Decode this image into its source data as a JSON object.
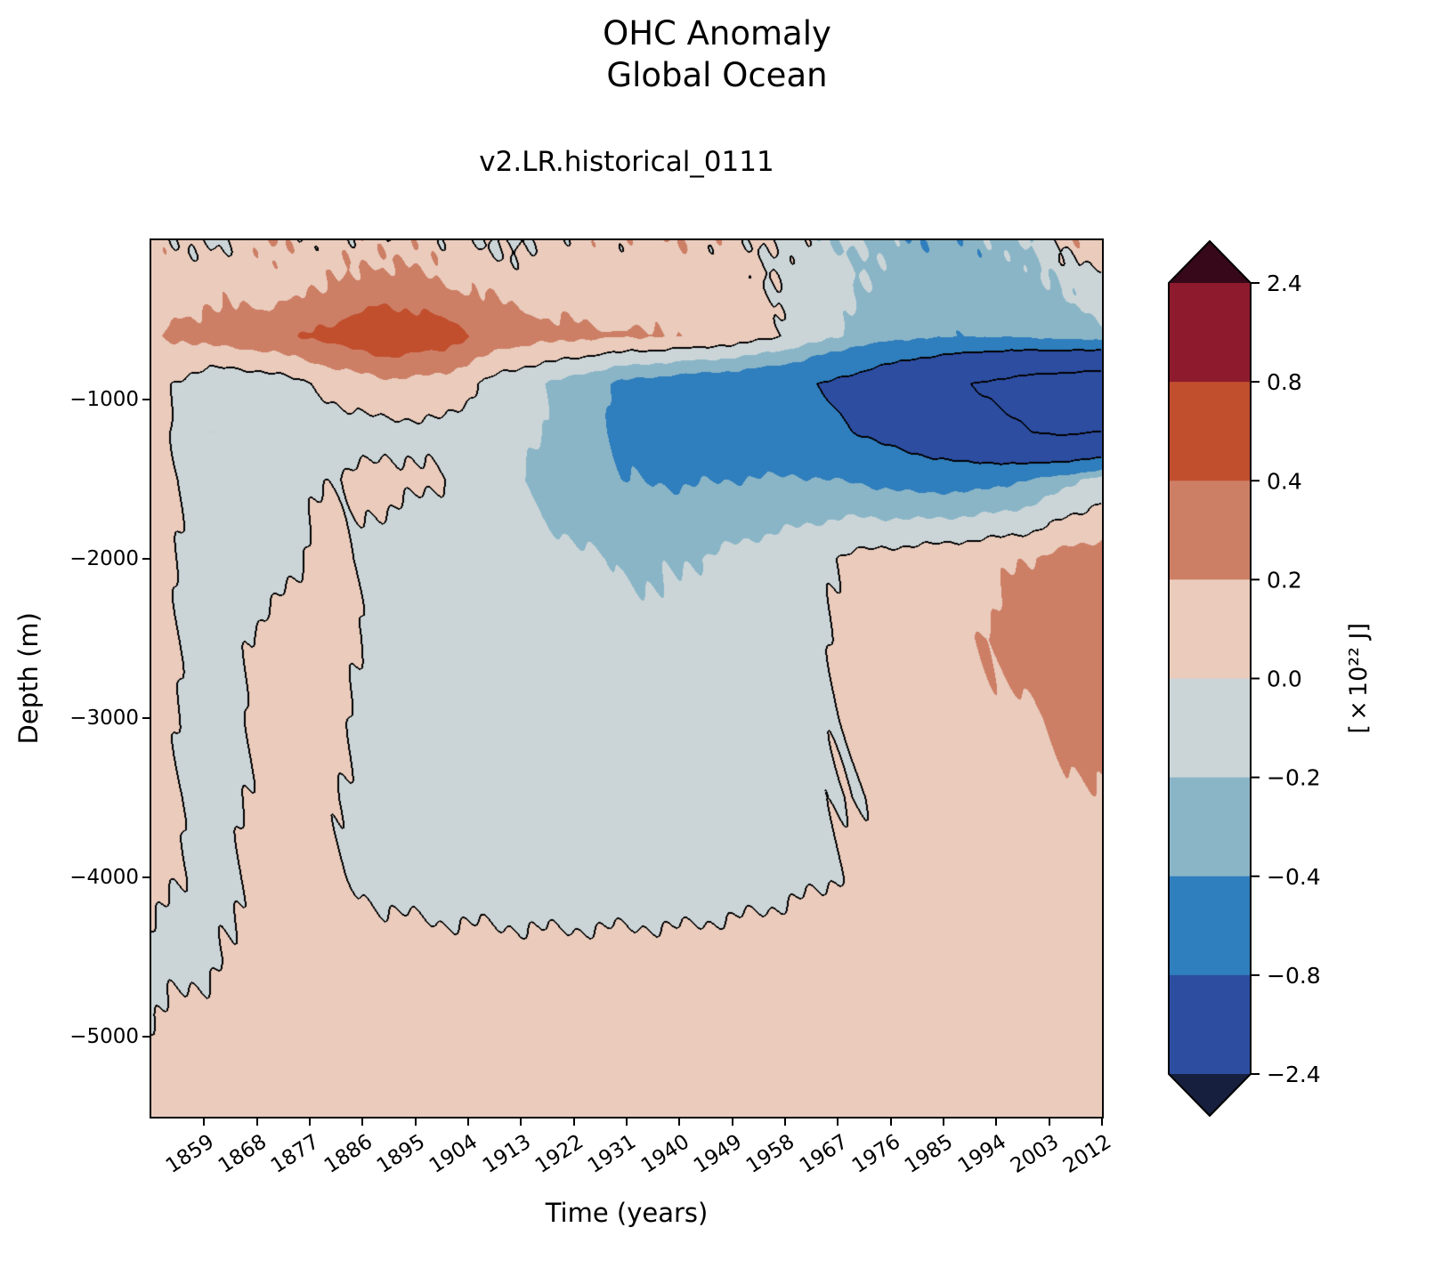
{
  "title_line1": "OHC Anomaly",
  "title_line2": "Global Ocean",
  "subtitle": "v2.LR.historical_0111",
  "chart_data": {
    "type": "heatmap",
    "title": "OHC Anomaly Global Ocean",
    "run_label": "v2.LR.historical_0111",
    "xlabel": "Time (years)",
    "ylabel": "Depth (m)",
    "x_range": [
      1850,
      2012
    ],
    "y_range": [
      -5500,
      0
    ],
    "x_tick_values": [
      1859,
      1868,
      1877,
      1886,
      1895,
      1904,
      1913,
      1922,
      1931,
      1940,
      1949,
      1958,
      1967,
      1976,
      1985,
      1994,
      2003,
      2012
    ],
    "x_tick_labels": [
      "1859",
      "1868",
      "1877",
      "1886",
      "1895",
      "1904",
      "1913",
      "1922",
      "1931",
      "1940",
      "1949",
      "1958",
      "1967",
      "1976",
      "1985",
      "1994",
      "2003",
      "2012"
    ],
    "y_tick_values": [
      -1000,
      -2000,
      -3000,
      -4000,
      -5000
    ],
    "y_tick_labels": [
      "−1000",
      "−2000",
      "−3000",
      "−4000",
      "−5000"
    ],
    "colorbar": {
      "label": "[×10²² J]",
      "boundaries": [
        -2.4,
        -0.8,
        -0.4,
        -0.2,
        0.0,
        0.2,
        0.4,
        0.8,
        2.4
      ],
      "tick_labels_top_to_bottom": [
        "2.4",
        "0.8",
        "0.4",
        "0.2",
        "0.0",
        "−0.2",
        "−0.4",
        "−0.8",
        "−2.4"
      ],
      "band_colors_low_to_high": [
        "#2c4da0",
        "#2f7ebd",
        "#8ab5c6",
        "#cbd5d8",
        "#eacbbc",
        "#cd7f66",
        "#c14f2e",
        "#8e1a2e"
      ],
      "under_color": "#161f3d",
      "over_color": "#36081a"
    },
    "contour_line_levels": [
      -1.6,
      -0.8,
      0.0,
      0.8,
      1.6
    ],
    "contour_line_color": "#000000",
    "grid": {
      "times": [
        1850,
        1860,
        1870,
        1880,
        1890,
        1900,
        1910,
        1920,
        1930,
        1940,
        1950,
        1960,
        1970,
        1980,
        1990,
        2000,
        2006,
        2012
      ],
      "depths": [
        0,
        -300,
        -600,
        -900,
        -1200,
        -1500,
        -2000,
        -2500,
        -3000,
        -3500,
        -4000,
        -4500,
        -5000,
        -5500
      ],
      "values": [
        [
          0.15,
          -0.05,
          0.18,
          0.05,
          0.12,
          0.08,
          -0.05,
          0.1,
          0.1,
          0.15,
          0.08,
          -0.1,
          -0.2,
          -0.35,
          -0.3,
          -0.2,
          0.1,
          0.18
        ],
        [
          0.12,
          0.15,
          0.1,
          0.22,
          0.3,
          0.22,
          0.15,
          0.1,
          0.08,
          0.12,
          0.05,
          -0.05,
          -0.18,
          -0.3,
          -0.35,
          -0.28,
          -0.18,
          -0.1
        ],
        [
          0.18,
          0.28,
          0.35,
          0.45,
          0.6,
          0.5,
          0.3,
          0.25,
          0.22,
          0.2,
          0.12,
          -0.05,
          -0.25,
          -0.35,
          -0.4,
          -0.35,
          -0.3,
          -0.25
        ],
        [
          0.1,
          -0.15,
          -0.12,
          0.05,
          0.15,
          0.12,
          -0.1,
          -0.25,
          -0.45,
          -0.55,
          -0.6,
          -0.7,
          -0.95,
          -1.3,
          -1.6,
          -1.9,
          -2.0,
          -2.1
        ],
        [
          0.1,
          -0.2,
          -0.15,
          -0.1,
          -0.05,
          -0.05,
          -0.1,
          -0.25,
          -0.45,
          -0.5,
          -0.55,
          -0.6,
          -0.8,
          -1.05,
          -1.35,
          -1.6,
          -1.7,
          -1.6
        ],
        [
          0.08,
          -0.1,
          -0.1,
          0.0,
          0.05,
          0.0,
          -0.15,
          -0.3,
          -0.4,
          -0.42,
          -0.4,
          -0.38,
          -0.42,
          -0.5,
          -0.5,
          -0.4,
          -0.25,
          -0.12
        ],
        [
          0.08,
          -0.1,
          -0.08,
          0.06,
          -0.08,
          -0.1,
          -0.1,
          -0.15,
          -0.22,
          -0.22,
          -0.15,
          -0.08,
          0.05,
          0.1,
          0.15,
          0.2,
          0.28,
          0.3
        ],
        [
          0.08,
          -0.1,
          0.05,
          0.08,
          -0.06,
          -0.12,
          -0.12,
          -0.12,
          -0.15,
          -0.15,
          -0.12,
          -0.08,
          0.05,
          0.12,
          0.18,
          0.3,
          0.38,
          0.33
        ],
        [
          0.08,
          -0.1,
          0.06,
          0.05,
          -0.08,
          -0.12,
          -0.12,
          -0.12,
          -0.12,
          -0.12,
          -0.1,
          -0.05,
          0.04,
          0.1,
          0.15,
          0.18,
          0.25,
          0.25
        ],
        [
          0.08,
          -0.08,
          0.05,
          0.02,
          -0.08,
          -0.1,
          -0.1,
          -0.1,
          -0.1,
          -0.1,
          -0.08,
          -0.04,
          0.0,
          0.06,
          0.1,
          0.15,
          0.18,
          0.18
        ],
        [
          0.05,
          -0.05,
          0.06,
          0.04,
          -0.06,
          -0.08,
          -0.08,
          -0.1,
          -0.1,
          -0.1,
          -0.08,
          -0.04,
          0.02,
          0.08,
          0.12,
          0.15,
          0.15,
          0.15
        ],
        [
          -0.05,
          -0.02,
          0.05,
          0.08,
          0.08,
          0.06,
          0.05,
          0.05,
          0.06,
          0.06,
          0.08,
          0.1,
          0.1,
          0.12,
          0.12,
          0.12,
          0.12,
          0.12
        ],
        [
          0.02,
          0.06,
          0.08,
          0.1,
          0.1,
          0.1,
          0.1,
          0.1,
          0.1,
          0.1,
          0.1,
          0.12,
          0.12,
          0.12,
          0.12,
          0.12,
          0.12,
          0.12
        ],
        [
          0.06,
          0.08,
          0.1,
          0.1,
          0.1,
          0.1,
          0.1,
          0.1,
          0.1,
          0.1,
          0.1,
          0.12,
          0.12,
          0.12,
          0.12,
          0.12,
          0.12,
          0.12
        ]
      ]
    }
  }
}
